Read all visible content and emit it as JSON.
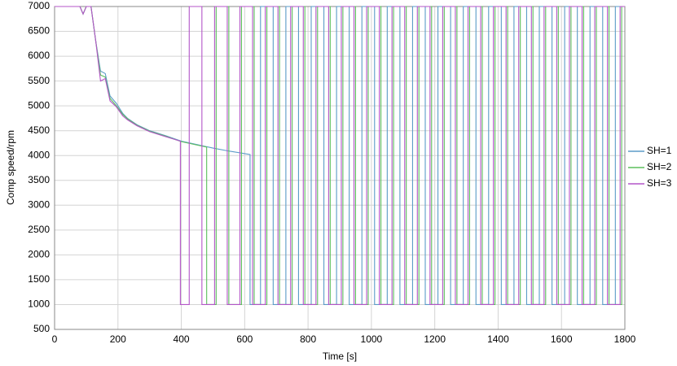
{
  "chart_data": {
    "type": "line",
    "x_label": "Time [s]",
    "y_label": "Comp speed/rpm",
    "xlim": [
      0,
      1800
    ],
    "xticks": [
      0,
      200,
      400,
      600,
      800,
      1000,
      1200,
      1400,
      1600,
      1800
    ],
    "ylim": [
      500,
      7000
    ],
    "yticks": [
      500,
      1000,
      1500,
      2000,
      2500,
      3000,
      3500,
      4000,
      4500,
      5000,
      5500,
      6000,
      6500,
      7000
    ],
    "grid": true,
    "legend": "right",
    "series": [
      {
        "name": "SH=1",
        "color": "#5b9bc8",
        "x": [
          0,
          80,
          90,
          100,
          115,
          130,
          145,
          160,
          175,
          195,
          215,
          230,
          260,
          300,
          350,
          400,
          450,
          500,
          550,
          617,
          617,
          650,
          650,
          690,
          690,
          730,
          730,
          770,
          770,
          810,
          810,
          850,
          850,
          890,
          890,
          930,
          930,
          970,
          970,
          1010,
          1010,
          1050,
          1050,
          1090,
          1090,
          1130,
          1130,
          1170,
          1170,
          1210,
          1210,
          1250,
          1250,
          1290,
          1290,
          1330,
          1330,
          1370,
          1370,
          1410,
          1410,
          1450,
          1450,
          1490,
          1490,
          1530,
          1530,
          1570,
          1570,
          1610,
          1610,
          1650,
          1650,
          1690,
          1690,
          1730,
          1730,
          1770,
          1770,
          1800
        ],
        "values": [
          7000,
          7000,
          6850,
          7000,
          7000,
          6300,
          5700,
          5650,
          5200,
          5050,
          4850,
          4750,
          4620,
          4500,
          4400,
          4290,
          4220,
          4150,
          4090,
          4020,
          1000,
          1000,
          7000,
          7000,
          1000,
          1000,
          7000,
          7000,
          1000,
          1000,
          7000,
          7000,
          1000,
          1000,
          7000,
          7000,
          1000,
          1000,
          7000,
          7000,
          1000,
          1000,
          7000,
          7000,
          1000,
          1000,
          7000,
          7000,
          1000,
          1000,
          7000,
          7000,
          1000,
          1000,
          7000,
          7000,
          1000,
          1000,
          7000,
          7000,
          1000,
          1000,
          7000,
          7000,
          1000,
          1000,
          7000,
          7000,
          1000,
          1000,
          7000,
          7000,
          1000,
          1000,
          7000,
          7000,
          1000,
          1000,
          7000,
          7000
        ]
      },
      {
        "name": "SH=2",
        "color": "#5cbf5c",
        "x": [
          0,
          80,
          90,
          100,
          115,
          130,
          145,
          160,
          175,
          195,
          215,
          230,
          260,
          300,
          350,
          400,
          450,
          480,
          480,
          510,
          510,
          550,
          550,
          590,
          590,
          630,
          630,
          670,
          670,
          710,
          710,
          750,
          750,
          790,
          790,
          830,
          830,
          870,
          870,
          910,
          910,
          950,
          950,
          990,
          990,
          1030,
          1030,
          1070,
          1070,
          1110,
          1110,
          1150,
          1150,
          1190,
          1190,
          1230,
          1230,
          1270,
          1270,
          1310,
          1310,
          1350,
          1350,
          1390,
          1390,
          1430,
          1430,
          1470,
          1470,
          1510,
          1510,
          1550,
          1550,
          1590,
          1590,
          1630,
          1630,
          1670,
          1670,
          1710,
          1710,
          1750,
          1750,
          1790,
          1790,
          1800
        ],
        "values": [
          7000,
          7000,
          6850,
          7000,
          7000,
          6300,
          5620,
          5580,
          5150,
          5000,
          4830,
          4740,
          4610,
          4490,
          4390,
          4280,
          4210,
          4170,
          1000,
          1000,
          7000,
          7000,
          1000,
          1000,
          7000,
          7000,
          1000,
          1000,
          7000,
          7000,
          1000,
          1000,
          7000,
          7000,
          1000,
          1000,
          7000,
          7000,
          1000,
          1000,
          7000,
          7000,
          1000,
          1000,
          7000,
          7000,
          1000,
          1000,
          7000,
          7000,
          1000,
          1000,
          7000,
          7000,
          1000,
          1000,
          7000,
          7000,
          1000,
          1000,
          7000,
          7000,
          1000,
          1000,
          7000,
          7000,
          1000,
          1000,
          7000,
          7000,
          1000,
          1000,
          7000,
          7000,
          1000,
          1000,
          7000,
          7000,
          1000,
          1000,
          7000,
          7000,
          1000,
          1000,
          7000,
          7000
        ]
      },
      {
        "name": "SH=3",
        "color": "#b455c8",
        "x": [
          0,
          80,
          90,
          100,
          115,
          130,
          145,
          160,
          175,
          195,
          215,
          230,
          260,
          300,
          350,
          397,
          397,
          425,
          425,
          465,
          465,
          505,
          505,
          545,
          545,
          585,
          585,
          625,
          625,
          665,
          665,
          705,
          705,
          745,
          745,
          785,
          785,
          825,
          825,
          865,
          865,
          905,
          905,
          945,
          945,
          985,
          985,
          1025,
          1025,
          1065,
          1065,
          1105,
          1105,
          1145,
          1145,
          1185,
          1185,
          1225,
          1225,
          1265,
          1265,
          1305,
          1305,
          1345,
          1345,
          1385,
          1385,
          1425,
          1425,
          1465,
          1465,
          1505,
          1505,
          1545,
          1545,
          1585,
          1585,
          1625,
          1625,
          1665,
          1665,
          1705,
          1705,
          1745,
          1745,
          1785,
          1785,
          1800
        ],
        "values": [
          7000,
          7000,
          6850,
          7000,
          7000,
          6300,
          5500,
          5550,
          5100,
          4980,
          4800,
          4720,
          4600,
          4480,
          4380,
          4290,
          1000,
          1000,
          7000,
          7000,
          1000,
          1000,
          7000,
          7000,
          1000,
          1000,
          7000,
          7000,
          1000,
          1000,
          7000,
          7000,
          1000,
          1000,
          7000,
          7000,
          1000,
          1000,
          7000,
          7000,
          1000,
          1000,
          7000,
          7000,
          1000,
          1000,
          7000,
          7000,
          1000,
          1000,
          7000,
          7000,
          1000,
          1000,
          7000,
          7000,
          1000,
          1000,
          7000,
          7000,
          1000,
          1000,
          7000,
          7000,
          1000,
          1000,
          7000,
          7000,
          1000,
          1000,
          7000,
          7000,
          1000,
          1000,
          7000,
          7000,
          1000,
          1000,
          7000,
          7000,
          1000,
          1000,
          7000,
          7000,
          1000,
          1000,
          7000,
          7000
        ]
      }
    ]
  }
}
